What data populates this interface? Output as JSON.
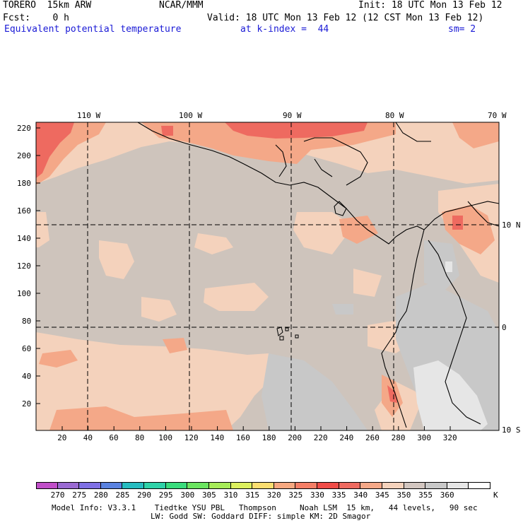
{
  "header": {
    "model": "TORERO  15km ARW",
    "center": "NCAR/MMM",
    "init": "Init: 18 UTC Mon 13 Feb 12",
    "fcst": "Fcst:    0 h",
    "valid": "Valid: 18 UTC Mon 13 Feb 12 (12 CST Mon 13 Feb 12)",
    "field": "Equivalent potential temperature",
    "level": "at k-index =  44",
    "smooth": "sm= 2"
  },
  "map": {
    "top_lon_labels": [
      "110 W",
      "100 W",
      "90 W",
      "80 W",
      "70 W"
    ],
    "right_lat_labels": [
      "10 N",
      "0",
      "10 S"
    ],
    "y_ticks": [
      "220",
      "200",
      "180",
      "160",
      "140",
      "120",
      "100",
      "80",
      "60",
      "40",
      "20"
    ],
    "x_ticks": [
      "20",
      "40",
      "60",
      "80",
      "100",
      "120",
      "140",
      "160",
      "180",
      "200",
      "220",
      "240",
      "260",
      "280",
      "300",
      "320"
    ]
  },
  "colorbar": {
    "units": "K",
    "labels": [
      "270",
      "275",
      "280",
      "285",
      "290",
      "295",
      "300",
      "305",
      "310",
      "315",
      "320",
      "325",
      "330",
      "335",
      "340",
      "345",
      "350",
      "355",
      "360"
    ],
    "colors": [
      "#c04ec8",
      "#9a6ad2",
      "#7f70e4",
      "#5a82e0",
      "#27bcc0",
      "#2fd2a8",
      "#39dc7c",
      "#6ae460",
      "#a6ec58",
      "#dcf05e",
      "#fbde70",
      "#f6a880",
      "#f47e66",
      "#f04c48",
      "#ee6a60",
      "#f4a888",
      "#f4d2bc",
      "#d2c6c0",
      "#c8c8c8",
      "#e6e6e6",
      "#ffffff"
    ]
  },
  "footer": {
    "line1": "Model Info: V3.3.1    Tiedtke YSU PBL   Thompson     Noah LSM  15 km,   44 levels,   90 sec",
    "line2": "LW: Godd SW: Goddard DIFF: simple KM: 2D Smagor"
  }
}
